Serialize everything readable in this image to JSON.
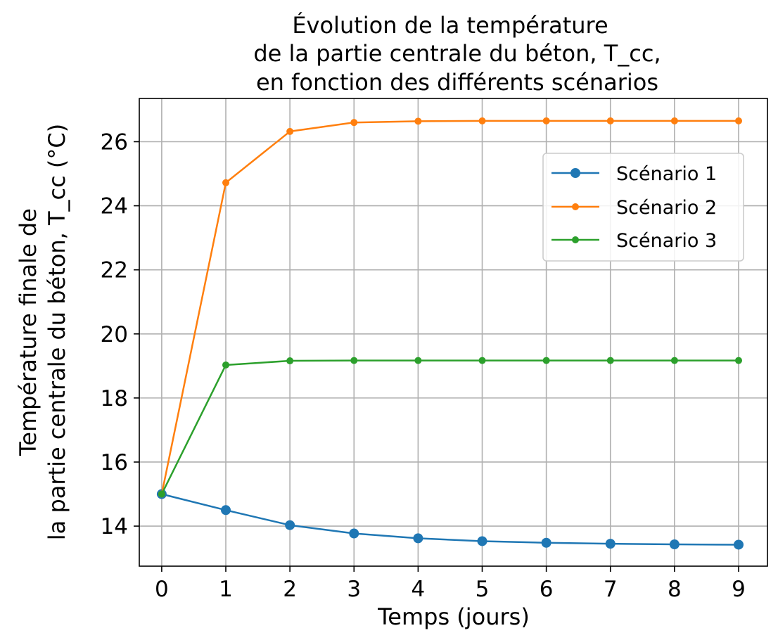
{
  "chart_data": {
    "type": "line",
    "title": [
      "Évolution de la température",
      "de la partie centrale du béton, T_cc,",
      "en fonction des différents scénarios"
    ],
    "xlabel": "Temps (jours)",
    "ylabel": [
      "Température finale de",
      "la partie centrale du béton, T_cc (°C)"
    ],
    "x": [
      0,
      1,
      2,
      3,
      4,
      5,
      6,
      7,
      8,
      9
    ],
    "xticks": [
      "0",
      "1",
      "2",
      "3",
      "4",
      "5",
      "6",
      "7",
      "8",
      "9"
    ],
    "yticks": [
      "14",
      "16",
      "18",
      "20",
      "22",
      "24",
      "26"
    ],
    "xlim": [
      -0.35,
      9.45
    ],
    "ylim": [
      12.75,
      27.35
    ],
    "grid": true,
    "legend_position": "top-right",
    "series": [
      {
        "name": "Scénario 1",
        "color": "#1f77b4",
        "marker_size": "large",
        "values": [
          15.0,
          14.5,
          14.03,
          13.77,
          13.62,
          13.53,
          13.48,
          13.45,
          13.43,
          13.42
        ]
      },
      {
        "name": "Scénario 2",
        "color": "#ff7f0e",
        "marker_size": "small",
        "values": [
          15.0,
          24.72,
          26.32,
          26.6,
          26.64,
          26.65,
          26.65,
          26.65,
          26.65,
          26.65
        ]
      },
      {
        "name": "Scénario 3",
        "color": "#2ca02c",
        "marker_size": "small",
        "values": [
          15.0,
          19.03,
          19.16,
          19.17,
          19.17,
          19.17,
          19.17,
          19.17,
          19.17,
          19.17
        ]
      }
    ]
  }
}
